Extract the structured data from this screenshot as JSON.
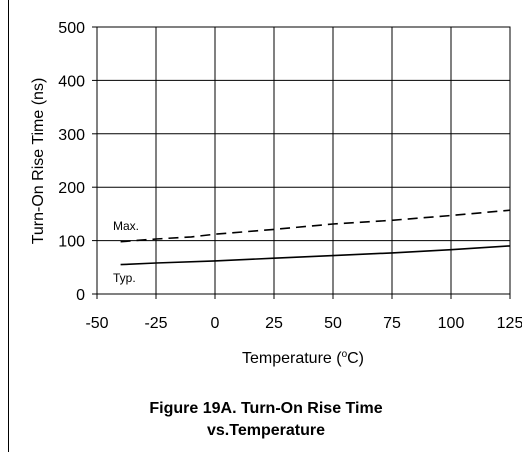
{
  "chart_data": {
    "type": "line",
    "title": "",
    "xlabel": "Temperature (°C)",
    "xlabel_main": "Temperature (",
    "xlabel_sup": "o",
    "xlabel_end": "C)",
    "ylabel": "Turn-On Rise Time (ns)",
    "xlim": [
      -50,
      125
    ],
    "ylim": [
      0,
      500
    ],
    "x_ticks": [
      -50,
      -25,
      0,
      25,
      50,
      75,
      100,
      125
    ],
    "x_tick_labels": [
      "-50",
      "-25",
      "0",
      "25",
      "50",
      "75",
      "100",
      "125"
    ],
    "y_ticks": [
      0,
      100,
      200,
      300,
      400,
      500
    ],
    "y_tick_labels": [
      "0",
      "100",
      "200",
      "300",
      "400",
      "500"
    ],
    "grid": true,
    "series": [
      {
        "name": "Max.",
        "style": "dashed",
        "x": [
          -40,
          -25,
          -10,
          0,
          25,
          50,
          75,
          100,
          125
        ],
        "y": [
          98,
          103,
          107,
          112,
          121,
          131,
          138,
          147,
          157
        ]
      },
      {
        "name": "Typ.",
        "style": "solid",
        "x": [
          -40,
          -25,
          0,
          25,
          50,
          75,
          100,
          125
        ],
        "y": [
          55,
          58,
          62,
          67,
          72,
          77,
          83,
          90
        ]
      }
    ]
  },
  "caption": {
    "line1": "Figure 19A. Turn-On Rise Time",
    "line2": "vs.Temperature"
  }
}
